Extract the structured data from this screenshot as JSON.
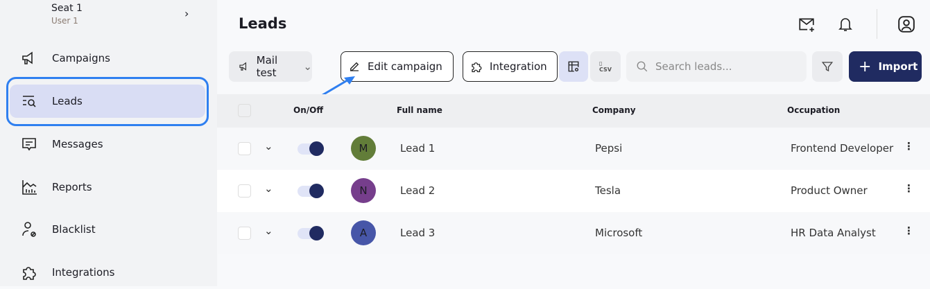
{
  "sidebar": {
    "seat_title": "Seat 1",
    "seat_user": "User 1",
    "items": [
      {
        "label": "Campaigns"
      },
      {
        "label": "Leads"
      },
      {
        "label": "Messages"
      },
      {
        "label": "Reports"
      },
      {
        "label": "Blacklist"
      },
      {
        "label": "Integrations"
      }
    ],
    "active": "Leads"
  },
  "header": {
    "title": "Leads"
  },
  "toolbar": {
    "campaign_select": "Mail test",
    "edit_campaign": "Edit campaign",
    "integration": "Integration",
    "search_placeholder": "Search leads...",
    "import": "Import"
  },
  "table": {
    "columns": [
      "On/Off",
      "Full name",
      "Company",
      "Occupation"
    ],
    "rows": [
      {
        "initial": "M",
        "avatar_color": "#627d39",
        "name": "Lead 1",
        "company": "Pepsi",
        "occupation": "Frontend Developer",
        "enabled": true
      },
      {
        "initial": "N",
        "avatar_color": "#763e8c",
        "name": "Lead 2",
        "company": "Tesla",
        "occupation": "Product Owner",
        "enabled": true
      },
      {
        "initial": "A",
        "avatar_color": "#4756a8",
        "name": "Lead 3",
        "company": "Microsoft",
        "occupation": "HR Data Analyst",
        "enabled": true
      }
    ]
  },
  "colors": {
    "accent": "#202b61",
    "highlight": "#2f7ff0",
    "active_nav": "#d9ddf4"
  }
}
